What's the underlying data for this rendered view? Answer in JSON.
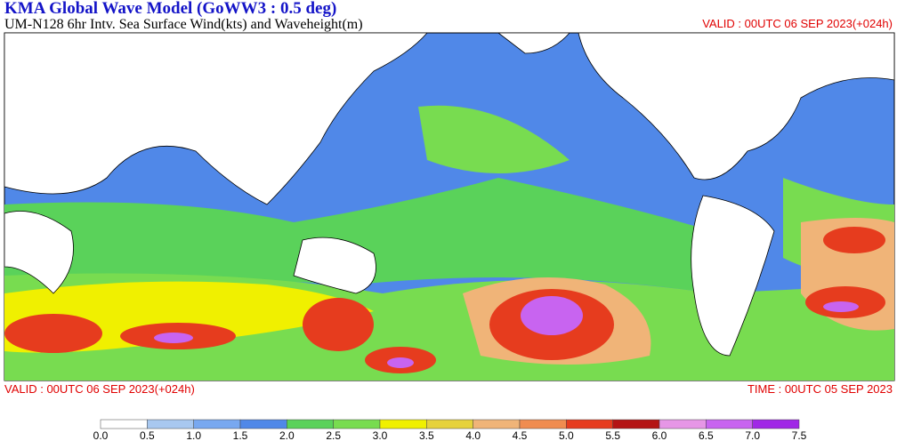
{
  "header": {
    "title": "KMA  Global Wave Model (GoWW3 : 0.5 deg)",
    "subtitle": "UM-N128  6hr Intv. Sea Surface Wind(kts) and Waveheight(m)",
    "valid_top": "VALID : 00UTC 06 SEP 2023(+024h)"
  },
  "footer": {
    "valid": "VALID : 00UTC 06 SEP 2023(+024h)",
    "time": "TIME : 00UTC 05 SEP 2023"
  },
  "colorbar": {
    "labels": [
      "0.0",
      "0.5",
      "1.0",
      "1.5",
      "2.0",
      "2.5",
      "3.0",
      "3.5",
      "4.0",
      "4.5",
      "5.0",
      "5.5",
      "6.0",
      "6.5",
      "7.0",
      "7.5"
    ],
    "colors": [
      "#ffffff",
      "#a8c8f0",
      "#78a8f0",
      "#5088e8",
      "#5ad25a",
      "#78dc50",
      "#f0f000",
      "#e6d23c",
      "#f0b478",
      "#f08c50",
      "#e63c1e",
      "#b41414",
      "#e696e6",
      "#c864f0",
      "#a028e6"
    ]
  }
}
